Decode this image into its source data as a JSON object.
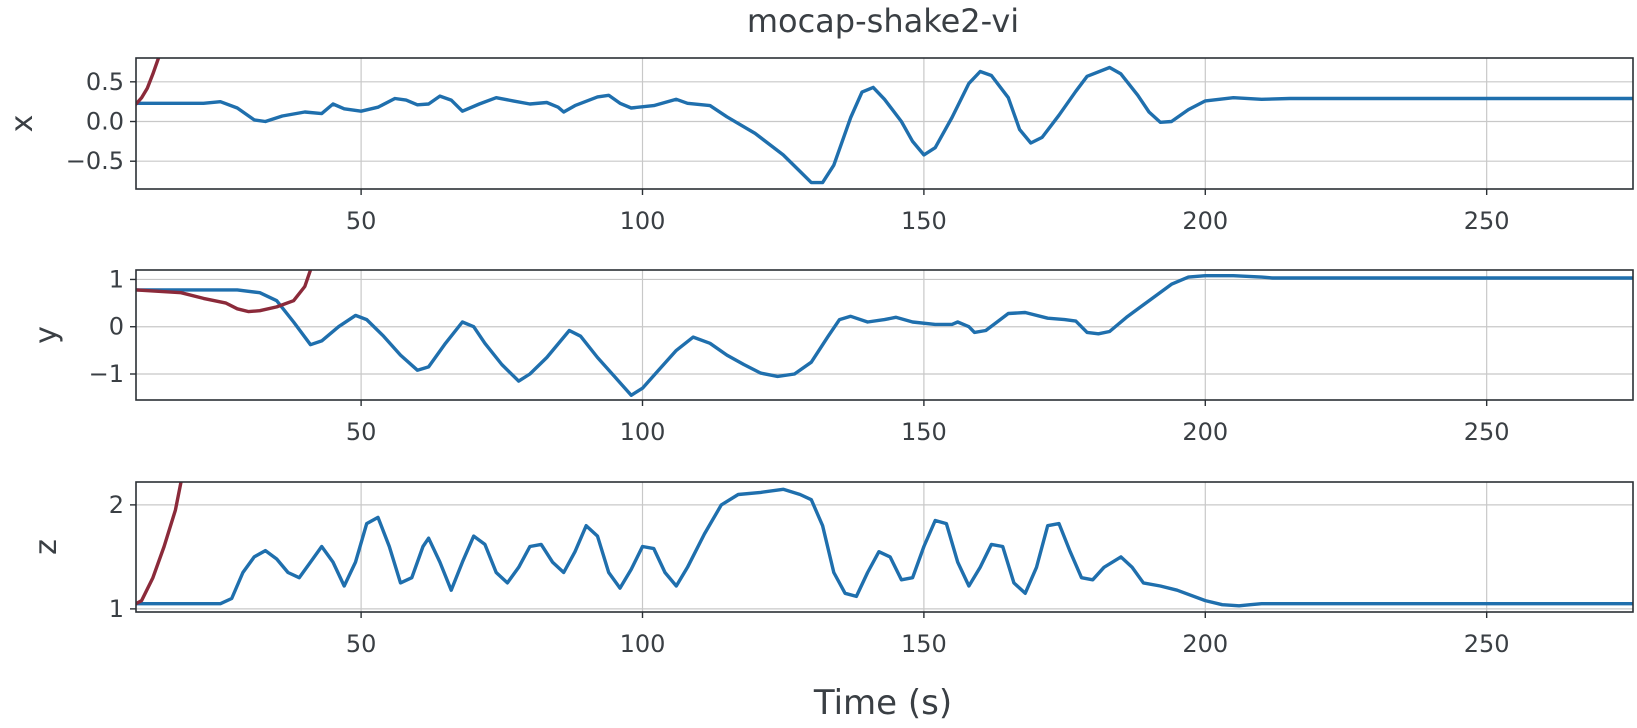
{
  "title": "mocap-shake2-vi",
  "xlabel": "Time (s)",
  "colors": {
    "blue": "#1f6fad",
    "red": "#8b2a3a",
    "grid": "#c8c8c8",
    "frame": "#2b3035"
  },
  "chart_data": [
    {
      "type": "line",
      "ylabel": "x",
      "xlim": [
        10,
        276
      ],
      "ylim": [
        -0.85,
        0.8
      ],
      "xticks": [
        50,
        100,
        150,
        200,
        250
      ],
      "yticks": [
        0.5,
        0.0,
        -0.5
      ],
      "ytick_labels": [
        "0.5",
        "0.0",
        "−0.5"
      ],
      "grid": true,
      "series": [
        {
          "color": "#1f6fad",
          "points": [
            [
              10,
              0.23
            ],
            [
              22,
              0.23
            ],
            [
              25,
              0.25
            ],
            [
              28,
              0.17
            ],
            [
              31,
              0.02
            ],
            [
              33,
              0.0
            ],
            [
              36,
              0.07
            ],
            [
              40,
              0.12
            ],
            [
              43,
              0.1
            ],
            [
              45,
              0.22
            ],
            [
              47,
              0.16
            ],
            [
              50,
              0.13
            ],
            [
              53,
              0.18
            ],
            [
              56,
              0.29
            ],
            [
              58,
              0.27
            ],
            [
              60,
              0.21
            ],
            [
              62,
              0.22
            ],
            [
              64,
              0.32
            ],
            [
              66,
              0.27
            ],
            [
              68,
              0.13
            ],
            [
              71,
              0.22
            ],
            [
              74,
              0.3
            ],
            [
              77,
              0.26
            ],
            [
              80,
              0.22
            ],
            [
              83,
              0.24
            ],
            [
              85,
              0.18
            ],
            [
              86,
              0.12
            ],
            [
              88,
              0.2
            ],
            [
              92,
              0.31
            ],
            [
              94,
              0.33
            ],
            [
              96,
              0.23
            ],
            [
              98,
              0.17
            ],
            [
              102,
              0.2
            ],
            [
              106,
              0.28
            ],
            [
              108,
              0.23
            ],
            [
              112,
              0.2
            ],
            [
              115,
              0.06
            ],
            [
              120,
              -0.15
            ],
            [
              125,
              -0.42
            ],
            [
              128,
              -0.63
            ],
            [
              130,
              -0.77
            ],
            [
              132,
              -0.77
            ],
            [
              134,
              -0.55
            ],
            [
              137,
              0.05
            ],
            [
              139,
              0.37
            ],
            [
              141,
              0.43
            ],
            [
              143,
              0.28
            ],
            [
              146,
              0.0
            ],
            [
              148,
              -0.25
            ],
            [
              150,
              -0.42
            ],
            [
              152,
              -0.33
            ],
            [
              155,
              0.05
            ],
            [
              158,
              0.48
            ],
            [
              160,
              0.63
            ],
            [
              162,
              0.58
            ],
            [
              165,
              0.3
            ],
            [
              167,
              -0.1
            ],
            [
              169,
              -0.27
            ],
            [
              171,
              -0.2
            ],
            [
              174,
              0.08
            ],
            [
              177,
              0.38
            ],
            [
              179,
              0.57
            ],
            [
              183,
              0.68
            ],
            [
              185,
              0.6
            ],
            [
              188,
              0.33
            ],
            [
              190,
              0.12
            ],
            [
              192,
              -0.01
            ],
            [
              194,
              0.0
            ],
            [
              197,
              0.15
            ],
            [
              200,
              0.26
            ],
            [
              205,
              0.3
            ],
            [
              210,
              0.28
            ],
            [
              215,
              0.29
            ],
            [
              276,
              0.29
            ]
          ]
        },
        {
          "color": "#8b2a3a",
          "points": [
            [
              10,
              0.22
            ],
            [
              11,
              0.3
            ],
            [
              12,
              0.42
            ],
            [
              13,
              0.6
            ],
            [
              14,
              0.8
            ]
          ]
        }
      ]
    },
    {
      "type": "line",
      "ylabel": "y",
      "xlim": [
        10,
        276
      ],
      "ylim": [
        -1.55,
        1.2
      ],
      "xticks": [
        50,
        100,
        150,
        200,
        250
      ],
      "yticks": [
        1,
        0,
        -1
      ],
      "ytick_labels": [
        "1",
        "0",
        "−1"
      ],
      "grid": true,
      "series": [
        {
          "color": "#1f6fad",
          "points": [
            [
              10,
              0.78
            ],
            [
              25,
              0.78
            ],
            [
              28,
              0.78
            ],
            [
              32,
              0.72
            ],
            [
              35,
              0.55
            ],
            [
              38,
              0.1
            ],
            [
              41,
              -0.38
            ],
            [
              43,
              -0.3
            ],
            [
              46,
              0.0
            ],
            [
              49,
              0.24
            ],
            [
              51,
              0.15
            ],
            [
              54,
              -0.2
            ],
            [
              57,
              -0.6
            ],
            [
              60,
              -0.92
            ],
            [
              62,
              -0.85
            ],
            [
              65,
              -0.35
            ],
            [
              68,
              0.1
            ],
            [
              70,
              0.0
            ],
            [
              72,
              -0.35
            ],
            [
              75,
              -0.8
            ],
            [
              78,
              -1.15
            ],
            [
              80,
              -1.0
            ],
            [
              83,
              -0.65
            ],
            [
              87,
              -0.08
            ],
            [
              89,
              -0.2
            ],
            [
              92,
              -0.65
            ],
            [
              95,
              -1.05
            ],
            [
              98,
              -1.45
            ],
            [
              100,
              -1.3
            ],
            [
              103,
              -0.9
            ],
            [
              106,
              -0.5
            ],
            [
              109,
              -0.22
            ],
            [
              112,
              -0.35
            ],
            [
              115,
              -0.6
            ],
            [
              118,
              -0.8
            ],
            [
              121,
              -0.98
            ],
            [
              124,
              -1.05
            ],
            [
              127,
              -1.0
            ],
            [
              130,
              -0.75
            ],
            [
              133,
              -0.2
            ],
            [
              135,
              0.15
            ],
            [
              137,
              0.22
            ],
            [
              140,
              0.1
            ],
            [
              143,
              0.15
            ],
            [
              145,
              0.2
            ],
            [
              148,
              0.1
            ],
            [
              152,
              0.05
            ],
            [
              155,
              0.05
            ],
            [
              156,
              0.1
            ],
            [
              158,
              0.0
            ],
            [
              159,
              -0.12
            ],
            [
              161,
              -0.08
            ],
            [
              163,
              0.1
            ],
            [
              165,
              0.28
            ],
            [
              168,
              0.3
            ],
            [
              172,
              0.18
            ],
            [
              175,
              0.15
            ],
            [
              177,
              0.12
            ],
            [
              179,
              -0.12
            ],
            [
              181,
              -0.15
            ],
            [
              183,
              -0.1
            ],
            [
              186,
              0.2
            ],
            [
              190,
              0.55
            ],
            [
              194,
              0.9
            ],
            [
              197,
              1.05
            ],
            [
              200,
              1.08
            ],
            [
              205,
              1.08
            ],
            [
              210,
              1.05
            ],
            [
              212,
              1.03
            ],
            [
              276,
              1.03
            ]
          ]
        },
        {
          "color": "#8b2a3a",
          "points": [
            [
              10,
              0.78
            ],
            [
              18,
              0.72
            ],
            [
              22,
              0.6
            ],
            [
              26,
              0.5
            ],
            [
              28,
              0.38
            ],
            [
              30,
              0.32
            ],
            [
              32,
              0.34
            ],
            [
              35,
              0.42
            ],
            [
              38,
              0.55
            ],
            [
              40,
              0.85
            ],
            [
              41,
              1.2
            ]
          ]
        }
      ]
    },
    {
      "type": "line",
      "ylabel": "z",
      "xlim": [
        10,
        276
      ],
      "ylim": [
        0.97,
        2.22
      ],
      "xticks": [
        50,
        100,
        150,
        200,
        250
      ],
      "yticks": [
        2,
        1
      ],
      "ytick_labels": [
        "2",
        "1"
      ],
      "grid": true,
      "series": [
        {
          "color": "#1f6fad",
          "points": [
            [
              10,
              1.05
            ],
            [
              25,
              1.05
            ],
            [
              27,
              1.1
            ],
            [
              29,
              1.35
            ],
            [
              31,
              1.5
            ],
            [
              33,
              1.56
            ],
            [
              35,
              1.48
            ],
            [
              37,
              1.35
            ],
            [
              39,
              1.3
            ],
            [
              41,
              1.45
            ],
            [
              43,
              1.6
            ],
            [
              45,
              1.45
            ],
            [
              47,
              1.22
            ],
            [
              49,
              1.45
            ],
            [
              51,
              1.82
            ],
            [
              53,
              1.88
            ],
            [
              55,
              1.6
            ],
            [
              57,
              1.25
            ],
            [
              59,
              1.3
            ],
            [
              61,
              1.6
            ],
            [
              62,
              1.68
            ],
            [
              64,
              1.45
            ],
            [
              66,
              1.18
            ],
            [
              68,
              1.45
            ],
            [
              70,
              1.7
            ],
            [
              72,
              1.62
            ],
            [
              74,
              1.35
            ],
            [
              76,
              1.25
            ],
            [
              78,
              1.4
            ],
            [
              80,
              1.6
            ],
            [
              82,
              1.62
            ],
            [
              84,
              1.45
            ],
            [
              86,
              1.35
            ],
            [
              88,
              1.55
            ],
            [
              90,
              1.8
            ],
            [
              92,
              1.7
            ],
            [
              94,
              1.35
            ],
            [
              96,
              1.2
            ],
            [
              98,
              1.38
            ],
            [
              100,
              1.6
            ],
            [
              102,
              1.58
            ],
            [
              104,
              1.35
            ],
            [
              106,
              1.22
            ],
            [
              108,
              1.4
            ],
            [
              111,
              1.72
            ],
            [
              114,
              2.0
            ],
            [
              117,
              2.1
            ],
            [
              121,
              2.12
            ],
            [
              125,
              2.15
            ],
            [
              128,
              2.1
            ],
            [
              130,
              2.05
            ],
            [
              132,
              1.8
            ],
            [
              134,
              1.35
            ],
            [
              136,
              1.15
            ],
            [
              138,
              1.12
            ],
            [
              140,
              1.35
            ],
            [
              142,
              1.55
            ],
            [
              144,
              1.5
            ],
            [
              146,
              1.28
            ],
            [
              148,
              1.3
            ],
            [
              150,
              1.6
            ],
            [
              152,
              1.85
            ],
            [
              154,
              1.82
            ],
            [
              156,
              1.45
            ],
            [
              158,
              1.22
            ],
            [
              160,
              1.4
            ],
            [
              162,
              1.62
            ],
            [
              164,
              1.6
            ],
            [
              166,
              1.25
            ],
            [
              168,
              1.15
            ],
            [
              170,
              1.4
            ],
            [
              172,
              1.8
            ],
            [
              174,
              1.82
            ],
            [
              176,
              1.55
            ],
            [
              178,
              1.3
            ],
            [
              180,
              1.28
            ],
            [
              182,
              1.4
            ],
            [
              185,
              1.5
            ],
            [
              187,
              1.4
            ],
            [
              189,
              1.25
            ],
            [
              192,
              1.22
            ],
            [
              195,
              1.18
            ],
            [
              200,
              1.08
            ],
            [
              203,
              1.04
            ],
            [
              206,
              1.03
            ],
            [
              208,
              1.04
            ],
            [
              210,
              1.05
            ],
            [
              276,
              1.05
            ]
          ]
        },
        {
          "color": "#8b2a3a",
          "points": [
            [
              10,
              1.05
            ],
            [
              11,
              1.08
            ],
            [
              13,
              1.3
            ],
            [
              15,
              1.6
            ],
            [
              17,
              1.95
            ],
            [
              18,
              2.22
            ]
          ]
        }
      ]
    }
  ]
}
